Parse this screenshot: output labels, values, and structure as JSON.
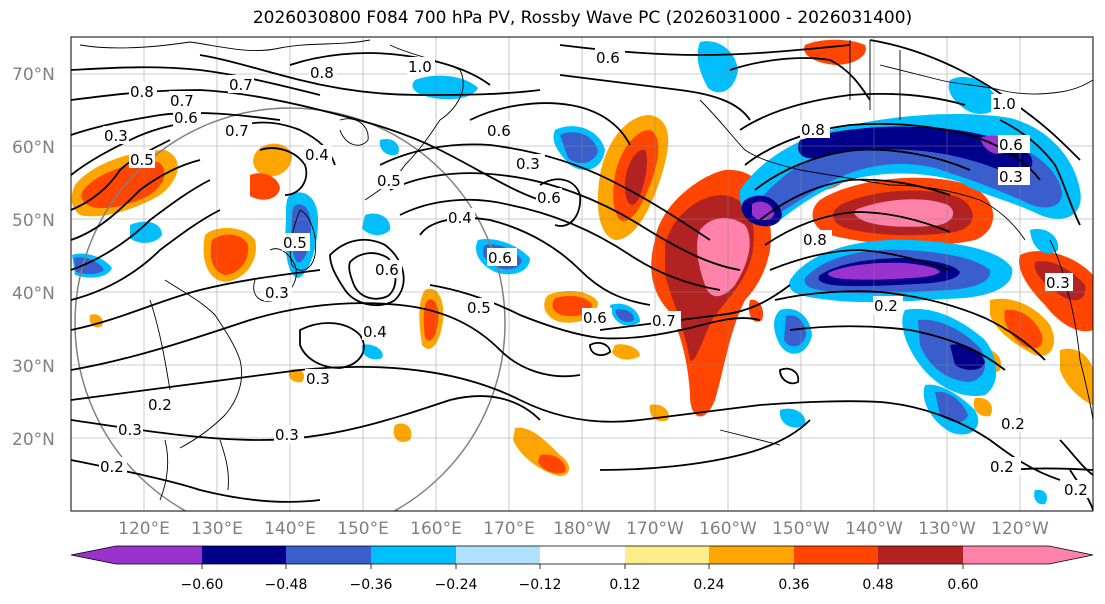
{
  "title": "2026030800 F084 700 hPa PV, Rossby Wave PC (2026031000 - 2026031400)",
  "lat_labels": [
    "70°N",
    "60°N",
    "50°N",
    "40°N",
    "30°N",
    "20°N"
  ],
  "lon_labels": [
    "120°E",
    "130°E",
    "140°E",
    "150°E",
    "160°E",
    "170°E",
    "180°W",
    "170°W",
    "160°W",
    "150°W",
    "140°W",
    "130°W",
    "120°W"
  ],
  "colorbar": {
    "ticks": [
      "−0.60",
      "−0.48",
      "−0.36",
      "−0.24",
      "−0.12",
      "0.12",
      "0.24",
      "0.36",
      "0.48",
      "0.60"
    ],
    "colors": [
      "#9a32cd",
      "#00008b",
      "#3a5fcd",
      "#00bfff",
      "#b0e2ff",
      "#ffffff",
      "#ffec8b",
      "#ffa500",
      "#ff4500",
      "#b22222",
      "#ff82ab"
    ]
  },
  "contour_labels": [
    "1.0",
    "0.8",
    "0.7",
    "0.6",
    "0.3",
    "0.5",
    "0.6",
    "0.8",
    "0.7",
    "0.6",
    "0.5",
    "0.4",
    "0.6",
    "0.5",
    "0.4",
    "0.6",
    "0.3",
    "0.4",
    "0.5",
    "0.6",
    "0.7",
    "0.8",
    "0.3",
    "0.2",
    "0.3",
    "0.2",
    "0.3",
    "0.2",
    "0.2",
    "0.6",
    "0.3",
    "0.2",
    "1.0",
    "0.7",
    "0.2",
    "0.3",
    "0.8",
    "0.6",
    "0.3"
  ]
}
